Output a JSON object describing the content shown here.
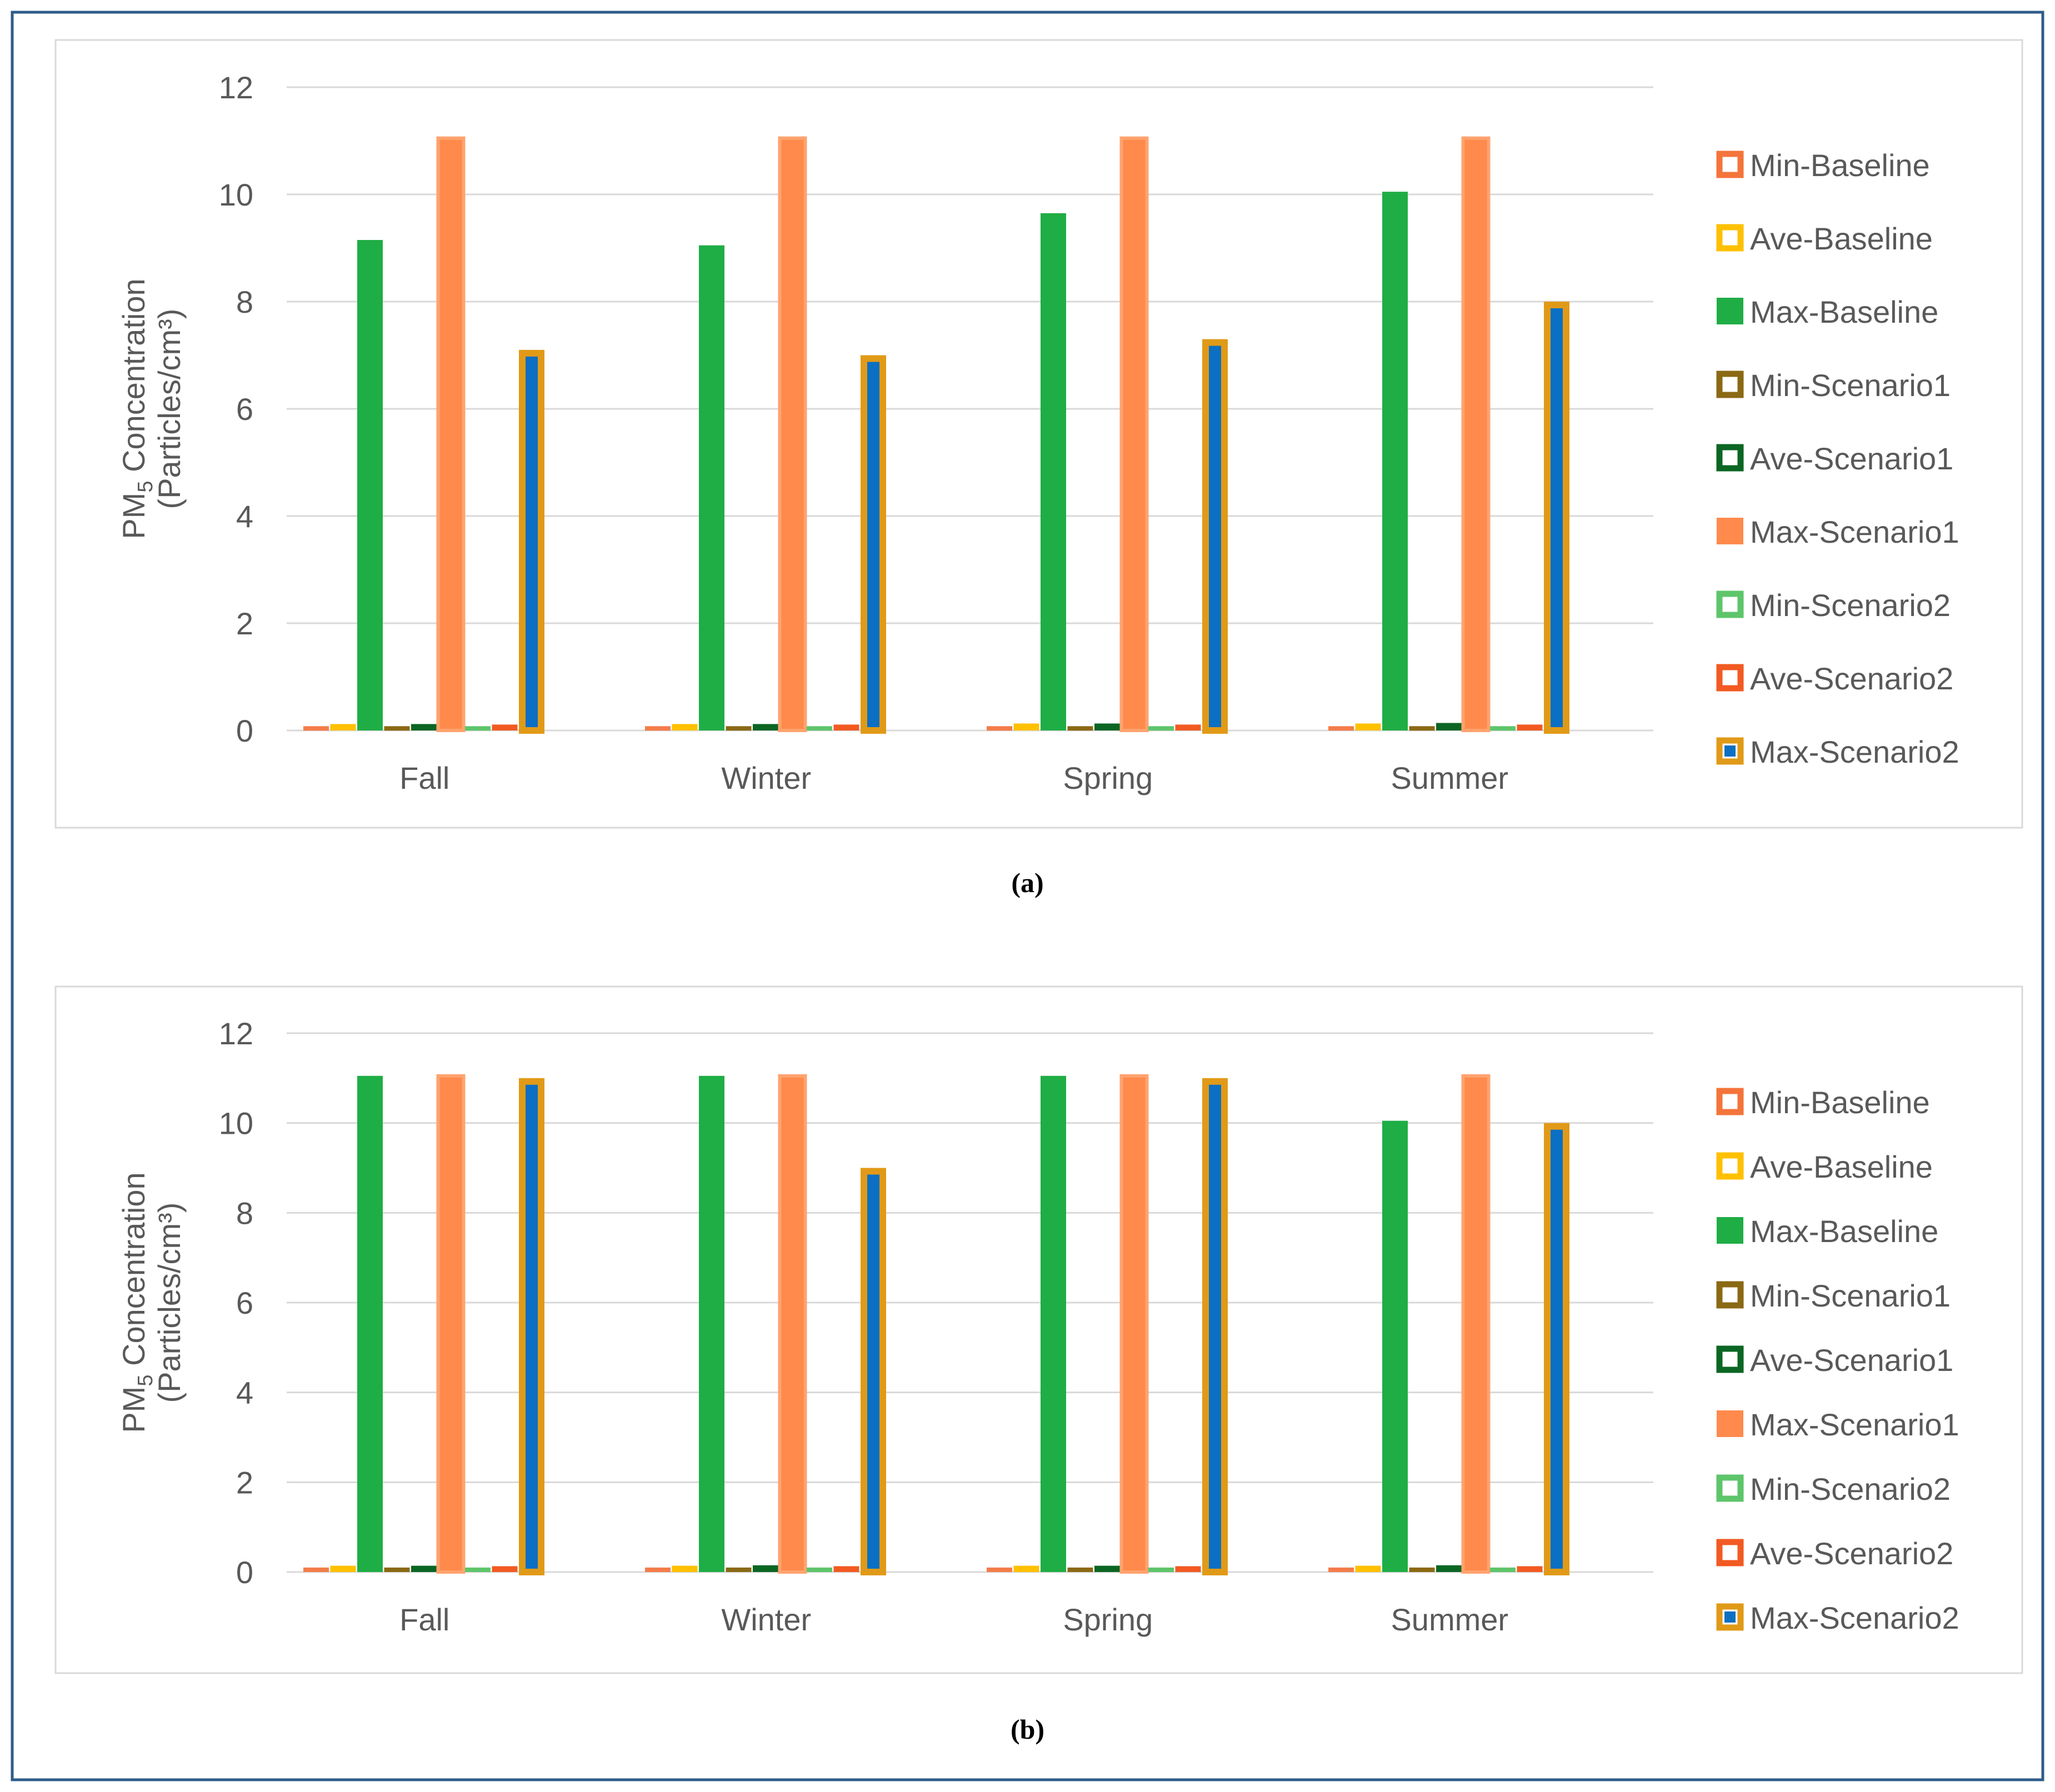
{
  "chart_data": [
    {
      "type": "bar",
      "caption": "(a)",
      "ylabel_line1_prefix": "PM",
      "ylabel_subscript": "5",
      "ylabel_line1_suffix": " Concentration",
      "ylabel_line2": "(Particles/cm³)",
      "ylim": [
        0,
        12
      ],
      "yticks": [
        "0",
        "2",
        "4",
        "6",
        "8",
        "10",
        "12"
      ],
      "grid": true,
      "legend_position": "right",
      "categories": [
        "Fall",
        "Winter",
        "Spring",
        "Summer"
      ],
      "series": [
        {
          "name": "Min-Baseline",
          "values": [
            0.08,
            0.08,
            0.08,
            0.08
          ]
        },
        {
          "name": "Ave-Baseline",
          "values": [
            0.12,
            0.12,
            0.13,
            0.13
          ]
        },
        {
          "name": "Max-Baseline",
          "values": [
            9.15,
            9.05,
            9.65,
            10.05
          ]
        },
        {
          "name": "Min-Scenario1",
          "values": [
            0.08,
            0.08,
            0.08,
            0.08
          ]
        },
        {
          "name": "Ave-Scenario1",
          "values": [
            0.12,
            0.12,
            0.13,
            0.14
          ]
        },
        {
          "name": "Max-Scenario1",
          "values": [
            11.05,
            11.05,
            11.05,
            11.05
          ]
        },
        {
          "name": "Min-Scenario2",
          "values": [
            0.08,
            0.08,
            0.08,
            0.08
          ]
        },
        {
          "name": "Ave-Scenario2",
          "values": [
            0.11,
            0.11,
            0.11,
            0.11
          ]
        },
        {
          "name": "Max-Scenario2",
          "values": [
            7.1,
            7.0,
            7.3,
            8.0
          ]
        }
      ]
    },
    {
      "type": "bar",
      "caption": "(b)",
      "ylabel_line1_prefix": "PM",
      "ylabel_subscript": "5",
      "ylabel_line1_suffix": " Concentration",
      "ylabel_line2": "(Particles/cm³)",
      "ylim": [
        0,
        12
      ],
      "yticks": [
        "0",
        "2",
        "4",
        "6",
        "8",
        "10",
        "12"
      ],
      "grid": true,
      "legend_position": "right",
      "categories": [
        "Fall",
        "Winter",
        "Spring",
        "Summer"
      ],
      "series": [
        {
          "name": "Min-Baseline",
          "values": [
            0.1,
            0.1,
            0.1,
            0.1
          ]
        },
        {
          "name": "Ave-Baseline",
          "values": [
            0.14,
            0.14,
            0.14,
            0.14
          ]
        },
        {
          "name": "Max-Baseline",
          "values": [
            11.05,
            11.05,
            11.05,
            10.05
          ]
        },
        {
          "name": "Min-Scenario1",
          "values": [
            0.1,
            0.1,
            0.1,
            0.1
          ]
        },
        {
          "name": "Ave-Scenario1",
          "values": [
            0.14,
            0.15,
            0.14,
            0.15
          ]
        },
        {
          "name": "Max-Scenario1",
          "values": [
            11.05,
            11.05,
            11.05,
            11.05
          ]
        },
        {
          "name": "Min-Scenario2",
          "values": [
            0.1,
            0.1,
            0.1,
            0.1
          ]
        },
        {
          "name": "Ave-Scenario2",
          "values": [
            0.13,
            0.13,
            0.13,
            0.13
          ]
        },
        {
          "name": "Max-Scenario2",
          "values": [
            11.0,
            9.0,
            11.0,
            10.0
          ]
        }
      ]
    }
  ],
  "series_styles": [
    {
      "fill": "#ffffff",
      "stroke": "#f4743b",
      "legend_style": "hollow"
    },
    {
      "fill": "#ffffff",
      "stroke": "#ffc000",
      "legend_style": "hollow"
    },
    {
      "fill": "#1fad45",
      "stroke": "#1fad45",
      "legend_style": "solid"
    },
    {
      "fill": "#ffffff",
      "stroke": "#8b6914",
      "legend_style": "hollow"
    },
    {
      "fill": "#ffffff",
      "stroke": "#0b6623",
      "legend_style": "hollow"
    },
    {
      "fill": "#ff8a4c",
      "stroke": "#ffa36f",
      "legend_style": "solid"
    },
    {
      "fill": "#ffffff",
      "stroke": "#5ec56b",
      "legend_style": "hollow"
    },
    {
      "fill": "#ffffff",
      "stroke": "#f25a22",
      "legend_style": "hollow"
    },
    {
      "fill": "#0b6fc4",
      "stroke": "#e19a17",
      "legend_style": "dot"
    }
  ],
  "bar_fill_colors": [
    "#f47c4a",
    "#ffc000",
    "#1fad45",
    "#8b6914",
    "#0b6623",
    "#ff8a4c",
    "#5ec56b",
    "#f25a22",
    "#0b6fc4"
  ],
  "frame_color": "#2e5c8a",
  "panel_border_color": "#d9d9d9",
  "grid_color": "#d9d9d9"
}
